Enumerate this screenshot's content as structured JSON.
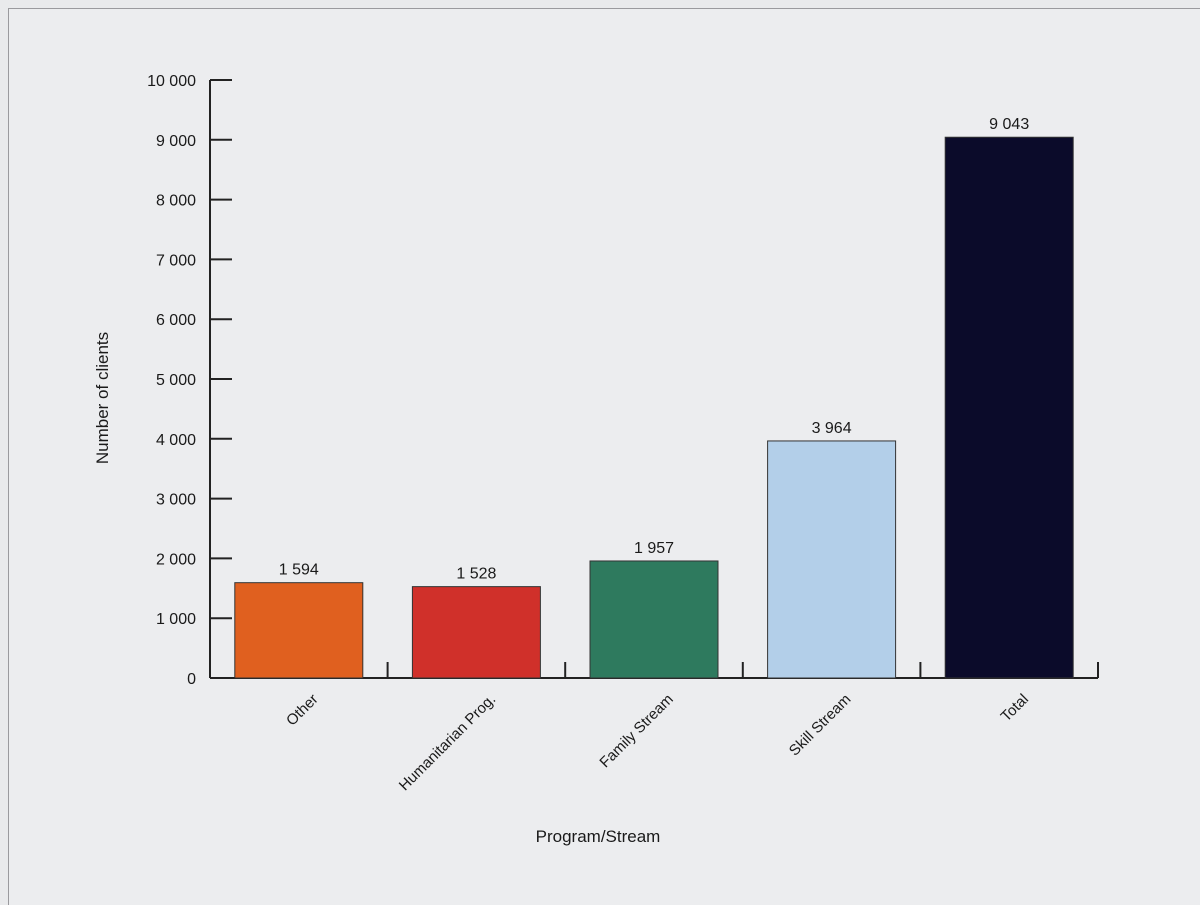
{
  "chart_data": {
    "type": "bar",
    "title": "",
    "xlabel": "Program/Stream",
    "ylabel": "Number of clients",
    "categories": [
      "Other",
      "Humanitarian Prog.",
      "Family Stream",
      "Skill Stream",
      "Total"
    ],
    "values": [
      1594,
      1528,
      1957,
      3964,
      9043
    ],
    "value_labels": [
      "1 594",
      "1 528",
      "1 957",
      "3 964",
      "9 043"
    ],
    "colors": [
      "#e0601f",
      "#d0302a",
      "#2e7a5e",
      "#b3cfe9",
      "#0b0b2a"
    ],
    "ylim": [
      0,
      10000
    ],
    "yticks": [
      0,
      1000,
      2000,
      3000,
      4000,
      5000,
      6000,
      7000,
      8000,
      9000,
      10000
    ],
    "ytick_labels": [
      "0",
      "1 000",
      "2 000",
      "3 000",
      "4 000",
      "5 000",
      "6 000",
      "7 000",
      "8 000",
      "9 000",
      "10 000"
    ],
    "grid": false,
    "legend": "none"
  }
}
